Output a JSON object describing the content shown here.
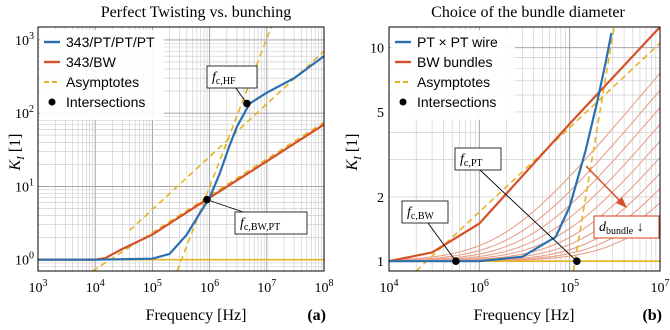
{
  "chart_data": [
    {
      "type": "line",
      "panel_label": "(a)",
      "title": "Perfect Twisting vs. bunching",
      "xlabel": "Frequency [Hz]",
      "ylabel": "K_I [1]",
      "xscale": "log",
      "yscale": "log",
      "xlim": [
        1000,
        100000000
      ],
      "ylim": [
        0.7,
        1500
      ],
      "x_ticks": [
        "10^3",
        "10^4",
        "10^5",
        "10^6",
        "10^7",
        "10^8"
      ],
      "y_ticks": [
        "10^0",
        "10^1",
        "10^2",
        "10^3"
      ],
      "legend_position": "top-left",
      "series": [
        {
          "name": "343/PT/PT/PT",
          "color": "#2a6fb0",
          "x": [
            1000,
            10000,
            100000,
            200000,
            400000,
            700000,
            1000000,
            1500000,
            2200000,
            3000000,
            5000000,
            10000000,
            30000000,
            100000000
          ],
          "y": [
            1,
            1,
            1.03,
            1.2,
            2.2,
            4.5,
            7,
            15,
            35,
            65,
            135,
            190,
            300,
            600
          ]
        },
        {
          "name": "343/BW",
          "color": "#d4512a",
          "x": [
            1000,
            10000,
            15000,
            30000,
            100000,
            1000000,
            10000000,
            100000000
          ],
          "y": [
            1,
            1,
            1.05,
            1.4,
            2.2,
            7,
            22,
            70
          ]
        },
        {
          "name": "Asymptotes",
          "color": "#e6b422",
          "x": [],
          "y": []
        },
        {
          "name": "Intersections",
          "color": "#000000",
          "x": [
            900000,
            4500000
          ],
          "y": [
            6.6,
            135
          ]
        }
      ],
      "asymptotes": [
        {
          "x": [
            9000,
            100000000
          ],
          "y": [
            0.7,
            75
          ]
        },
        {
          "x": [
            270000,
            12000000
          ],
          "y": [
            0.7,
            1500
          ]
        },
        {
          "x": [
            40000,
            100000000
          ],
          "y": [
            2.5,
            700
          ]
        },
        {
          "x": [
            1000,
            100000000
          ],
          "y": [
            1,
            1
          ]
        }
      ],
      "annotations": [
        {
          "text": "f",
          "sub": "c,HF",
          "x": 4500000,
          "y": 135
        },
        {
          "text": "f",
          "sub": "c,BW,PT",
          "x": 900000,
          "y": 6.6
        }
      ]
    },
    {
      "type": "line",
      "panel_label": "(b)",
      "title": "Choice of the bundle diameter",
      "xlabel": "Frequency [Hz]",
      "ylabel": "K_I [1]",
      "xscale": "log",
      "yscale": "log",
      "xlim": [
        10000,
        10000000
      ],
      "ylim": [
        0.9,
        12.5
      ],
      "x_ticks": [
        "10^4",
        "10^6",
        "10^5",
        "10^7"
      ],
      "y_ticks": [
        "1",
        "2",
        "5",
        "10"
      ],
      "legend_position": "top-left",
      "series": [
        {
          "name": "PT × PT wire",
          "color": "#2a6fb0",
          "x": [
            10000,
            100000,
            300000,
            700000,
            1000000,
            1500000,
            2000000,
            2500000,
            2900000
          ],
          "y": [
            1,
            1,
            1.05,
            1.3,
            1.8,
            3.3,
            5.5,
            8.5,
            11.7
          ]
        },
        {
          "name": "BW bundles",
          "color": "#d4512a",
          "x": [
            10000,
            30000,
            100000,
            1000000,
            10000000
          ],
          "y": [
            1,
            1.1,
            1.5,
            4.4,
            12.5
          ]
        },
        {
          "name": "Asymptotes",
          "color": "#e6b422",
          "x": [],
          "y": []
        },
        {
          "name": "Intersections",
          "color": "#000000",
          "x": [
            55000,
            1200000
          ],
          "y": [
            1,
            1
          ]
        }
      ],
      "bundle_curves_count": 10,
      "asymptotes": [
        {
          "x": [
            20000,
            10000000
          ],
          "y": [
            0.9,
            10.5
          ]
        },
        {
          "x": [
            1100000,
            3100000
          ],
          "y": [
            0.9,
            12.5
          ]
        },
        {
          "x": [
            10000,
            10000000
          ],
          "y": [
            1,
            1
          ]
        }
      ],
      "annotations": [
        {
          "text": "f",
          "sub": "c,PT",
          "x": 1200000,
          "y": 1
        },
        {
          "text": "f",
          "sub": "c,BW",
          "x": 55000,
          "y": 1
        },
        {
          "text": "d",
          "sub": "bundle",
          "suffix": " ↓",
          "x": null,
          "y": null
        }
      ]
    }
  ]
}
